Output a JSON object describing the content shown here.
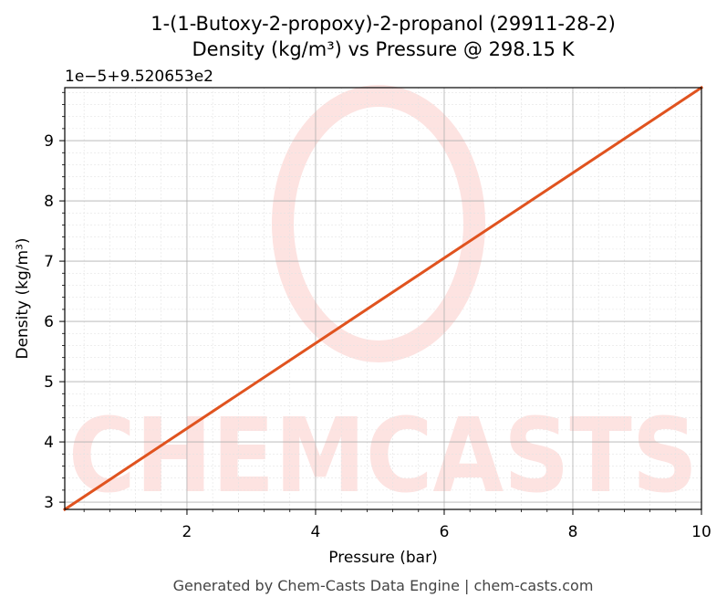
{
  "chart_data": {
    "type": "line",
    "title_line1": "1-(1-Butoxy-2-propoxy)-2-propanol (29911-28-2)",
    "title_line2": "Density (kg/m³) vs Pressure @ 298.15 K",
    "xlabel": "Pressure (bar)",
    "ylabel": "Density (kg/m³)",
    "y_offset_label": "1e−5+9.520653e2",
    "xlim": [
      0.1,
      10
    ],
    "ylim": [
      2.88,
      9.88
    ],
    "x_ticks": [
      2,
      4,
      6,
      8,
      10
    ],
    "y_ticks": [
      3,
      4,
      5,
      6,
      7,
      8,
      9
    ],
    "grid": true,
    "series": [
      {
        "color": "#e0531f",
        "x": [
          0.1,
          10
        ],
        "y": [
          2.88,
          9.88
        ]
      }
    ]
  },
  "watermark": {
    "text": "CHEMCASTS",
    "color": "#fde3e1"
  },
  "footer": "Generated by Chem-Casts Data Engine | chem-casts.com"
}
